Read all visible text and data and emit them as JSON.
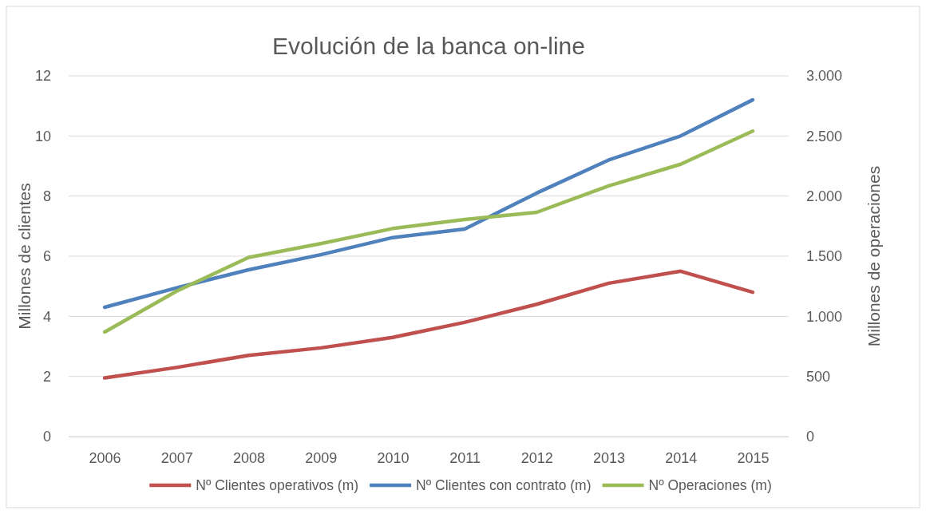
{
  "chart_data": {
    "type": "line",
    "title": "Evolución de la banca on-line",
    "ylabel": "Millones de clientes",
    "y2label": "Millones de operaciones",
    "categories": [
      "2006",
      "2007",
      "2008",
      "2009",
      "2010",
      "2011",
      "2012",
      "2013",
      "2014",
      "2015"
    ],
    "series": [
      {
        "name": "Nº Clientes operativos (m)",
        "color": "#c0504d",
        "values": [
          1.95,
          2.3,
          2.7,
          2.95,
          3.3,
          3.8,
          4.4,
          5.1,
          5.5,
          4.8
        ]
      },
      {
        "name": "Nº Clientes con contrato (m)",
        "color": "#4f81bd",
        "values": [
          4.3,
          4.95,
          5.55,
          6.05,
          6.62,
          6.9,
          8.1,
          9.2,
          10.0,
          11.2
        ]
      },
      {
        "name": "Nº Operaciones (m)",
        "color": "#9bbb59",
        "axis": "y2",
        "values": [
          870,
          1210,
          1490,
          1605,
          1730,
          1805,
          1865,
          2085,
          2265,
          2540
        ]
      }
    ],
    "ylim": [
      0,
      12
    ],
    "yticks": [
      0,
      2,
      4,
      6,
      8,
      10,
      12
    ],
    "y2lim": [
      0,
      3000
    ],
    "y2ticks": [
      0,
      {
        "value": 500,
        "label": "500"
      },
      {
        "value": 1000,
        "label": "1.000"
      },
      {
        "value": 1500,
        "label": "1.500"
      },
      {
        "value": 2000,
        "label": "2.000"
      },
      {
        "value": 2500,
        "label": "2.500"
      },
      {
        "value": 3000,
        "label": "3.000"
      }
    ],
    "grid": "y",
    "legend": "bottom",
    "marker": "none",
    "line_style": "solid"
  }
}
